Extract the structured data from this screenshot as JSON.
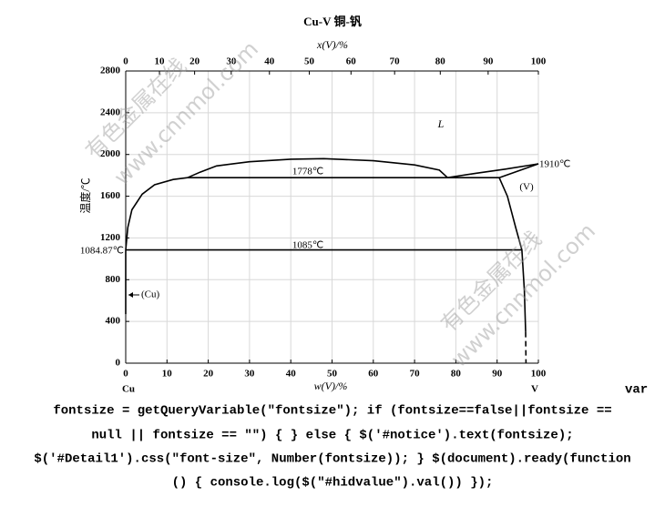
{
  "chart_data": {
    "type": "line",
    "title": "Cu-V  铜-钒",
    "x_label": "w(V)/%",
    "x2_label": "x(V)/%",
    "y_label": "温度/℃",
    "xlim": [
      0,
      100
    ],
    "xticks": [
      0,
      10,
      20,
      30,
      40,
      50,
      60,
      70,
      80,
      90,
      100
    ],
    "x2lim": [
      0,
      100
    ],
    "x2ticks": [
      0,
      10,
      20,
      30,
      40,
      50,
      60,
      70,
      80,
      90,
      100
    ],
    "ylim": [
      0,
      2800
    ],
    "yticks": [
      0,
      400,
      800,
      1200,
      1600,
      2000,
      2400,
      2800
    ],
    "grid": true,
    "series": [
      {
        "color": "#000000",
        "style": "solid",
        "x": [
          0,
          0.5,
          1.5,
          4,
          7,
          11.5,
          15
        ],
        "values": [
          1084.87,
          1300,
          1470,
          1620,
          1710,
          1760,
          1778
        ]
      },
      {
        "color": "#000000",
        "style": "solid",
        "x": [
          15,
          18,
          22,
          30,
          40,
          48,
          60,
          70,
          76,
          78
        ],
        "values": [
          1778,
          1830,
          1890,
          1930,
          1955,
          1960,
          1940,
          1900,
          1850,
          1778
        ]
      },
      {
        "color": "#000000",
        "style": "solid",
        "x": [
          78,
          85,
          92,
          100
        ],
        "values": [
          1778,
          1820,
          1860,
          1910
        ]
      },
      {
        "color": "#000000",
        "style": "solid",
        "x": [
          90.5,
          100
        ],
        "values": [
          1778,
          1910
        ]
      },
      {
        "color": "#000000",
        "style": "solid",
        "x": [
          15,
          90.5
        ],
        "values": [
          1778,
          1778
        ]
      },
      {
        "color": "#000000",
        "style": "solid",
        "x": [
          0,
          96
        ],
        "values": [
          1085,
          1085
        ]
      },
      {
        "color": "#000000",
        "style": "solid",
        "x": [
          90.5,
          92.5,
          94.5,
          96,
          96.6,
          96.9
        ],
        "values": [
          1778,
          1600,
          1300,
          1085,
          700,
          300
        ]
      },
      {
        "color": "#000000",
        "style": "dashed",
        "x": [
          96.9,
          97
        ],
        "values": [
          300,
          0
        ]
      },
      {
        "color": "#000000",
        "style": "solid",
        "x": [
          0,
          0
        ],
        "values": [
          1085,
          470
        ]
      }
    ],
    "annotations": [
      "L",
      "1778℃",
      "1085℃",
      "1910℃",
      "1084.87℃",
      "(V)",
      "(Cu)",
      "Cu",
      "V"
    ],
    "watermarks": [
      "有色金属在线",
      "www.cnnmol.com",
      "有色金属在线",
      "www.cnnmol.com"
    ]
  },
  "code_lines": [
    "var",
    "fontsize = getQueryVariable(″fontsize″); if (fontsize==false||fontsize ==",
    "null || fontsize == ″″) { } else { $('#notice').text(fontsize);",
    "$('#Detail1').css(″font-size″, Number(fontsize)); } $(document).ready(function",
    "() { console.log($(″#hidvalue″).val()) });"
  ]
}
